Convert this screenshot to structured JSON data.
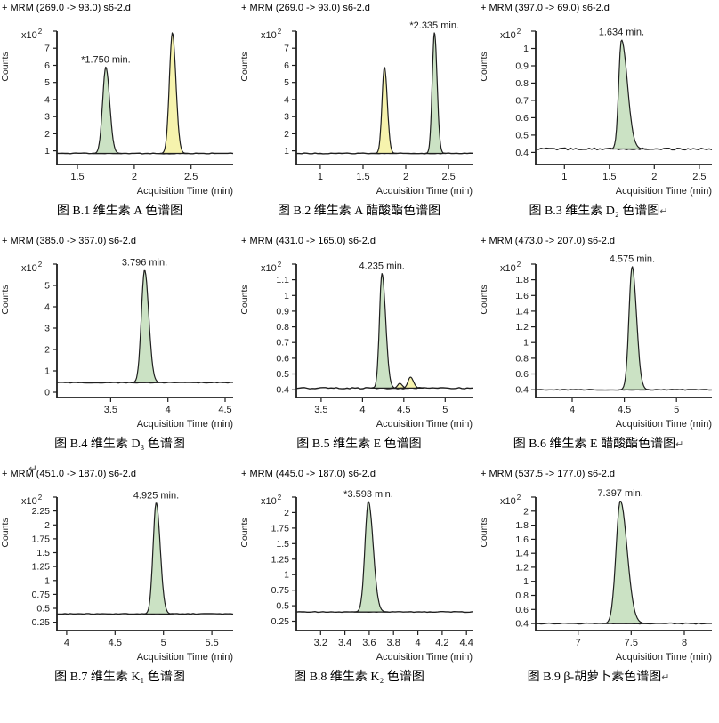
{
  "palette": {
    "peak_green": "#cbe2c4",
    "peak_yellow": "#f6f3ad",
    "line": "#1f1f1f",
    "text": "#1a1a1a"
  },
  "stray_mark": "↵",
  "chart_data": [
    {
      "type": "area",
      "title": "+ MRM (269.0 -> 93.0) s6-2.d",
      "ylabel": "Counts",
      "y_multiplier": "x10",
      "y_exponent": "2",
      "xlabel": "Acquisition Time (min)",
      "x_ticks": [
        1.5,
        2,
        2.5
      ],
      "xlim": [
        1.32,
        2.87
      ],
      "y_ticks": [
        1,
        2,
        3,
        4,
        5,
        6,
        7
      ],
      "ylim": [
        0.2,
        8
      ],
      "baseline": 0.85,
      "noise": 0.4,
      "peaks": [
        {
          "rt": 1.75,
          "height": 5.9,
          "sigma": 0.028,
          "tail": 1.2,
          "color": "green",
          "label": "*1.750 min."
        },
        {
          "rt": 2.335,
          "height": 7.9,
          "sigma": 0.026,
          "tail": 1.2,
          "color": "yellow"
        }
      ],
      "caption": "图 B.1 维生素 A 色谱图",
      "mark": ""
    },
    {
      "type": "area",
      "title": "+ MRM (269.0 -> 93.0) s6-2.d",
      "ylabel": "Counts",
      "y_multiplier": "x10",
      "y_exponent": "2",
      "xlabel": "Acquisition Time (min)",
      "x_ticks": [
        1,
        1.5,
        2,
        2.5
      ],
      "xlim": [
        0.72,
        2.78
      ],
      "y_ticks": [
        1,
        2,
        3,
        4,
        5,
        6,
        7
      ],
      "ylim": [
        0.2,
        8
      ],
      "baseline": 0.85,
      "noise": 0.4,
      "peaks": [
        {
          "rt": 1.75,
          "height": 5.9,
          "sigma": 0.028,
          "tail": 1.2,
          "color": "yellow"
        },
        {
          "rt": 2.335,
          "height": 7.9,
          "sigma": 0.026,
          "tail": 1.2,
          "color": "green",
          "label": "*2.335 min."
        }
      ],
      "caption": "图 B.2 维生素 A 醋酸酯色谱图",
      "mark": ""
    },
    {
      "type": "area",
      "title": "+ MRM (397.0 -> 69.0) s6-2.d",
      "ylabel": "Counts",
      "y_multiplier": "x10",
      "y_exponent": "2",
      "xlabel": "Acquisition Time (min)",
      "x_ticks": [
        1,
        1.5,
        2,
        2.5
      ],
      "xlim": [
        0.68,
        2.64
      ],
      "y_ticks": [
        0.4,
        0.5,
        0.6,
        0.7,
        0.8,
        0.9,
        1
      ],
      "ylim": [
        0.33,
        1.1
      ],
      "baseline": 0.42,
      "noise": 1.0,
      "peaks": [
        {
          "rt": 1.634,
          "height": 1.05,
          "sigma": 0.03,
          "tail": 2.2,
          "color": "green",
          "label": "1.634 min."
        }
      ],
      "caption": "图 B.3 维生素 D₂ 色谱图",
      "mark": "↵"
    },
    {
      "type": "area",
      "title": "+ MRM (385.0 -> 367.0) s6-2.d",
      "ylabel": "Counts",
      "y_multiplier": "x10",
      "y_exponent": "2",
      "xlabel": "Acquisition Time (min)",
      "x_ticks": [
        3.5,
        4,
        4.5
      ],
      "xlim": [
        3.03,
        4.57
      ],
      "y_ticks": [
        0,
        1,
        2,
        3,
        4,
        5
      ],
      "ylim": [
        -0.25,
        6
      ],
      "baseline": 0.45,
      "noise": 0.4,
      "peaks": [
        {
          "rt": 3.796,
          "height": 5.72,
          "sigma": 0.028,
          "tail": 1.3,
          "color": "green",
          "label": "3.796 min."
        }
      ],
      "caption": "图 B.4 维生素 D₃ 色谱图",
      "mark": ""
    },
    {
      "type": "area",
      "title": "+ MRM (431.0 -> 165.0) s6-2.d",
      "ylabel": "Counts",
      "y_multiplier": "x10",
      "y_exponent": "2",
      "xlabel": "Acquisition Time (min)",
      "x_ticks": [
        3.5,
        4,
        4.5,
        5
      ],
      "xlim": [
        3.2,
        5.33
      ],
      "y_ticks": [
        0.4,
        0.5,
        0.6,
        0.7,
        0.8,
        0.9,
        1,
        1.1
      ],
      "ylim": [
        0.35,
        1.2
      ],
      "baseline": 0.41,
      "noise": 0.8,
      "peaks": [
        {
          "rt": 4.235,
          "height": 1.14,
          "sigma": 0.03,
          "tail": 1.5,
          "color": "green",
          "label": "4.235 min."
        },
        {
          "rt": 4.45,
          "height": 0.44,
          "sigma": 0.025,
          "tail": 1.2,
          "color": "yellow"
        },
        {
          "rt": 4.58,
          "height": 0.48,
          "sigma": 0.03,
          "tail": 1.2,
          "color": "yellow"
        }
      ],
      "caption": "图 B.5 维生素 E 色谱图",
      "mark": ""
    },
    {
      "type": "area",
      "title": "+ MRM (473.0 -> 207.0) s6-2.d",
      "ylabel": "Counts",
      "y_multiplier": "x10",
      "y_exponent": "2",
      "xlabel": "Acquisition Time (min)",
      "x_ticks": [
        4,
        4.5,
        5
      ],
      "xlim": [
        3.65,
        5.34
      ],
      "y_ticks": [
        0.4,
        0.6,
        0.8,
        1,
        1.2,
        1.4,
        1.6,
        1.8
      ],
      "ylim": [
        0.3,
        2.0
      ],
      "baseline": 0.4,
      "noise": 0.4,
      "peaks": [
        {
          "rt": 4.575,
          "height": 1.97,
          "sigma": 0.03,
          "tail": 1.4,
          "color": "green",
          "label": "4.575 min."
        }
      ],
      "caption": "图 B.6 维生素 E 醋酸酯色谱图",
      "mark": "↵"
    },
    {
      "type": "area",
      "title": "+ MRM (451.0 -> 187.0) s6-2.d",
      "ylabel": "Counts",
      "y_multiplier": "x10",
      "y_exponent": "2",
      "xlabel": "Acquisition Time (min)",
      "x_ticks": [
        4,
        4.5,
        5,
        5.5
      ],
      "xlim": [
        3.9,
        5.72
      ],
      "y_ticks": [
        0.25,
        0.5,
        0.75,
        1,
        1.25,
        1.5,
        1.75,
        2,
        2.25
      ],
      "ylim": [
        0.1,
        2.5
      ],
      "baseline": 0.4,
      "noise": 0.4,
      "peaks": [
        {
          "rt": 4.925,
          "height": 2.4,
          "sigma": 0.032,
          "tail": 1.3,
          "color": "green",
          "label": "4.925 min."
        }
      ],
      "caption": "图 B.7 维生素 K₁ 色谱图",
      "mark": ""
    },
    {
      "type": "area",
      "title": "+ MRM (445.0 -> 187.0) s6-2.d",
      "ylabel": "Counts",
      "y_multiplier": "x10",
      "y_exponent": "2",
      "xlabel": "Acquisition Time (min)",
      "x_ticks": [
        3.2,
        3.4,
        3.6,
        3.8,
        4,
        4.2,
        4.4
      ],
      "xlim": [
        3.0,
        4.45
      ],
      "y_ticks": [
        0.25,
        0.5,
        0.75,
        1,
        1.25,
        1.5,
        1.75,
        2
      ],
      "ylim": [
        0.1,
        2.25
      ],
      "baseline": 0.4,
      "noise": 0.4,
      "peaks": [
        {
          "rt": 3.593,
          "height": 2.18,
          "sigma": 0.028,
          "tail": 1.4,
          "color": "green",
          "label": "*3.593 min."
        }
      ],
      "caption": "图 B.8 维生素 K₂ 色谱图",
      "mark": ""
    },
    {
      "type": "area",
      "title": "+ MRM (537.5 -> 177.0) s6-2.d",
      "ylabel": "Counts",
      "y_multiplier": "x10",
      "y_exponent": "2",
      "xlabel": "Acquisition Time (min)",
      "x_ticks": [
        7,
        7.5,
        8
      ],
      "xlim": [
        6.6,
        8.26
      ],
      "y_ticks": [
        0.4,
        0.6,
        0.8,
        1,
        1.2,
        1.4,
        1.6,
        1.8,
        2
      ],
      "ylim": [
        0.3,
        2.2
      ],
      "baseline": 0.4,
      "noise": 0.5,
      "peaks": [
        {
          "rt": 7.397,
          "height": 2.15,
          "sigma": 0.04,
          "tail": 1.6,
          "color": "green",
          "label": "7.397 min."
        }
      ],
      "caption": "图 B.9 β-胡萝卜素色谱图",
      "mark": "↵"
    }
  ]
}
